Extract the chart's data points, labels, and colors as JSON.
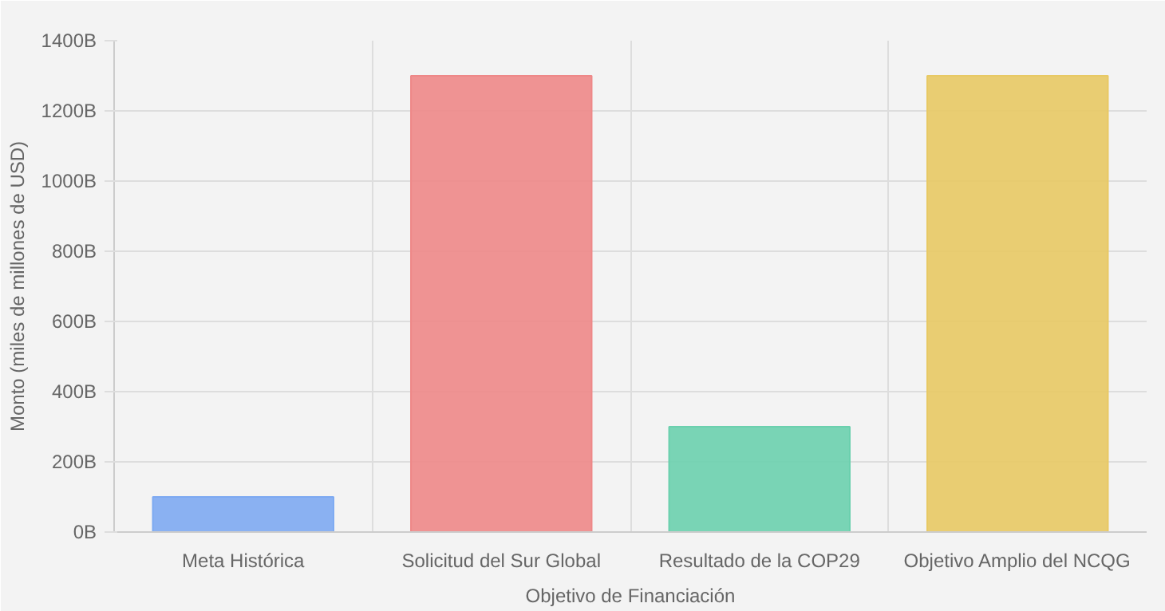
{
  "chart_data": {
    "type": "bar",
    "xlabel": "Objetivo de Financiación",
    "ylabel": "Monto (miles de millones de USD)",
    "categories": [
      "Meta Histórica",
      "Solicitud del Sur Global",
      "Resultado de la COP29",
      "Objetivo Amplio del NCQG"
    ],
    "values": [
      100,
      1300,
      300,
      1300
    ],
    "colors": [
      "#7eaaf2",
      "#ee8888",
      "#6bd0ae",
      "#e8c964"
    ],
    "ylim": [
      0,
      1400
    ],
    "yticks": [
      {
        "value": 0,
        "label": "0B"
      },
      {
        "value": 200,
        "label": "200B"
      },
      {
        "value": 400,
        "label": "400B"
      },
      {
        "value": 600,
        "label": "600B"
      },
      {
        "value": 800,
        "label": "800B"
      },
      {
        "value": 1000,
        "label": "1000B"
      },
      {
        "value": 1200,
        "label": "1200B"
      },
      {
        "value": 1400,
        "label": "1400B"
      }
    ],
    "grid": true
  }
}
